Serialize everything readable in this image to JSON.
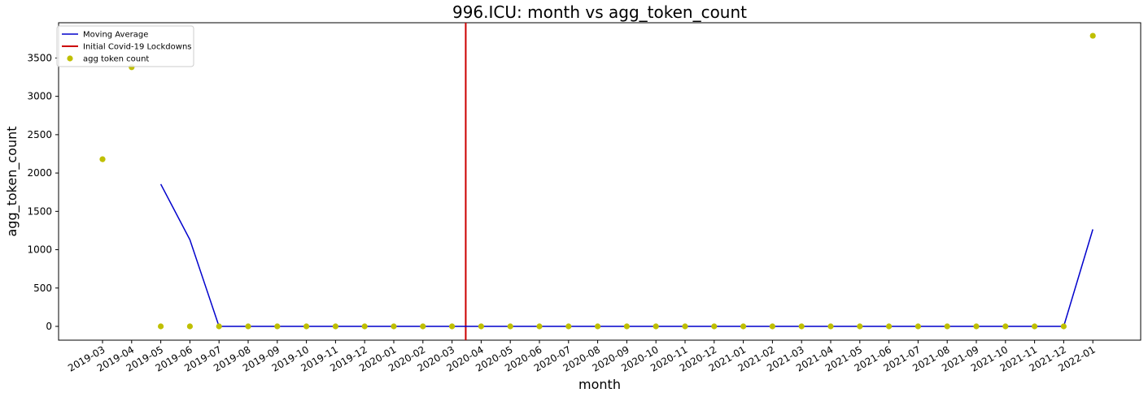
{
  "chart_data": {
    "type": "line",
    "title": "996.ICU: month vs agg_token_count",
    "xlabel": "month",
    "ylabel": "agg_token_count",
    "ylim": [
      -180,
      3960
    ],
    "yticks": [
      0,
      500,
      1000,
      1500,
      2000,
      2500,
      3000,
      3500
    ],
    "categories": [
      "2019-03",
      "2019-04",
      "2019-05",
      "2019-06",
      "2019-07",
      "2019-08",
      "2019-09",
      "2019-10",
      "2019-11",
      "2019-12",
      "2020-01",
      "2020-02",
      "2020-03",
      "2020-04",
      "2020-05",
      "2020-06",
      "2020-07",
      "2020-08",
      "2020-09",
      "2020-10",
      "2020-11",
      "2020-12",
      "2021-01",
      "2021-02",
      "2021-03",
      "2021-04",
      "2021-05",
      "2021-06",
      "2021-07",
      "2021-08",
      "2021-09",
      "2021-10",
      "2021-11",
      "2021-12",
      "2022-01"
    ],
    "series": [
      {
        "name": "Moving Average",
        "kind": "line",
        "color": "#0000cc",
        "values": [
          null,
          null,
          1855,
          1130,
          0,
          0,
          0,
          0,
          0,
          0,
          0,
          0,
          0,
          0,
          0,
          0,
          0,
          0,
          0,
          0,
          0,
          0,
          0,
          0,
          0,
          0,
          0,
          0,
          0,
          0,
          0,
          0,
          0,
          0,
          1265
        ]
      },
      {
        "name": "agg token count",
        "kind": "scatter",
        "color": "#bfbf00",
        "values": [
          2180,
          3380,
          0,
          0,
          0,
          0,
          0,
          0,
          0,
          0,
          0,
          0,
          0,
          0,
          0,
          0,
          0,
          0,
          0,
          0,
          0,
          0,
          0,
          0,
          0,
          0,
          0,
          0,
          0,
          0,
          0,
          0,
          0,
          0,
          3790
        ]
      }
    ],
    "vline": {
      "name": "Initial Covid-19 Lockdowns",
      "x": "2020-03-15",
      "color": "#cc0000"
    },
    "legend": {
      "placement": "top-left"
    },
    "grid": false
  }
}
